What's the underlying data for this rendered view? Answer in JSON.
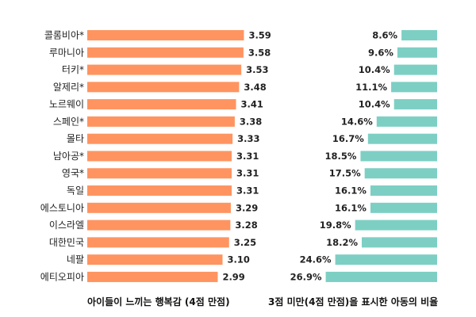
{
  "chart_data": [
    {
      "type": "bar",
      "orientation": "horizontal",
      "categories": [
        "콜롬비아*",
        "루마니아",
        "터키*",
        "알제리*",
        "노르웨이",
        "스페인*",
        "몰타",
        "남아공*",
        "영국*",
        "독일",
        "에스토니아",
        "이스라엘",
        "대한민국",
        "네팔",
        "에티오피아"
      ],
      "values": [
        3.59,
        3.58,
        3.53,
        3.48,
        3.41,
        3.38,
        3.33,
        3.31,
        3.31,
        3.31,
        3.29,
        3.28,
        3.25,
        3.1,
        2.99
      ],
      "value_labels": [
        "3.59",
        "3.58",
        "3.53",
        "3.48",
        "3.41",
        "3.38",
        "3.33",
        "3.31",
        "3.31",
        "3.31",
        "3.29",
        "3.28",
        "3.25",
        "3.10",
        "2.99"
      ],
      "xlabel": "아이들이 느끼는 행복감 (4점 만점)",
      "color": "#FF9460",
      "grid": false
    },
    {
      "type": "bar",
      "orientation": "horizontal",
      "direction": "right-to-left",
      "categories": [
        "콜롬비아*",
        "루마니아",
        "터키*",
        "알제리*",
        "노르웨이",
        "스페인*",
        "몰타",
        "남아공*",
        "영국*",
        "독일",
        "에스토니아",
        "이스라엘",
        "대한민국",
        "네팔",
        "에티오피아"
      ],
      "values": [
        8.6,
        9.6,
        10.4,
        11.1,
        10.4,
        14.6,
        16.7,
        18.5,
        17.5,
        16.1,
        16.1,
        19.8,
        18.2,
        24.6,
        26.9
      ],
      "value_labels": [
        "8.6%",
        "9.6%",
        "10.4%",
        "11.1%",
        "10.4%",
        "14.6%",
        "16.7%",
        "18.5%",
        "17.5%",
        "16.1%",
        "16.1%",
        "19.8%",
        "18.2%",
        "24.6%",
        "26.9%"
      ],
      "xlabel": "3점 미만(4점 만점)을 표시한 아동의 비율",
      "color": "#7DCFC4",
      "grid": false
    }
  ]
}
